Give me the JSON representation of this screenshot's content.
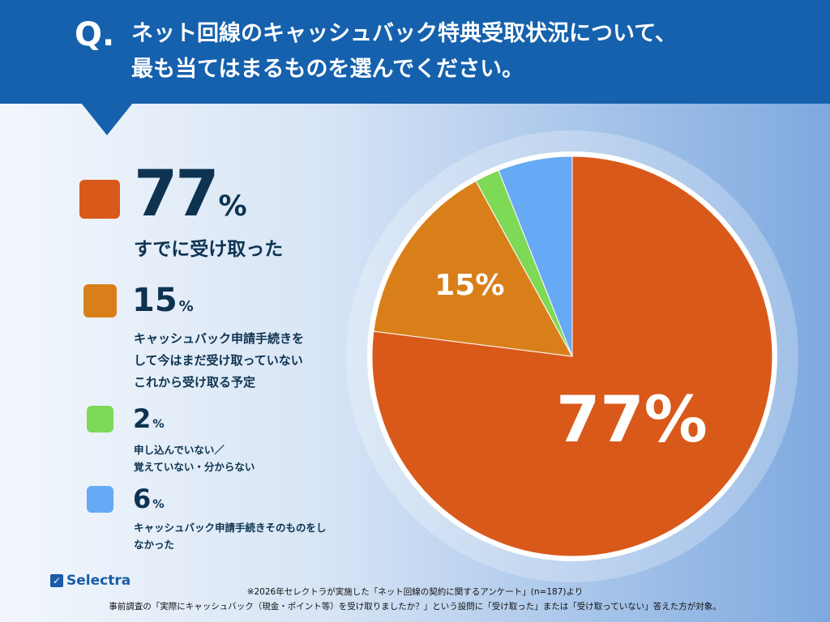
{
  "header": {
    "q_mark": "Q.",
    "title_line1": "ネット回線のキャッシュバック特典受取状況について、",
    "title_line2": "最も当てはまるものを選んでください。"
  },
  "chart_data": {
    "type": "pie",
    "start": "top",
    "direction": "clockwise",
    "slices": [
      {
        "label": "すでに受け取った",
        "value": 77,
        "pct_text": "77",
        "color": "#d9591a",
        "data_label": "77%"
      },
      {
        "label": "キャッシュバック申請手続きをして今はまだ受け取っていないこれから受け取る予定",
        "lines": [
          "キャッシュバック申請手続きを",
          "して今はまだ受け取っていない",
          "これから受け取る予定"
        ],
        "value": 15,
        "pct_text": "15",
        "color": "#d97f1a",
        "data_label": "15%"
      },
      {
        "label": "申し込んでいない／覚えていない・分からない",
        "lines": [
          "申し込んでいない／",
          "覚えていない・分からない"
        ],
        "value": 2,
        "pct_text": "2",
        "color": "#7ed957",
        "data_label": ""
      },
      {
        "label": "キャッシュバック申請手続きそのものをしなかった",
        "lines": [
          "キャッシュバック申請手続きそのものをし",
          "なかった"
        ],
        "value": 6,
        "pct_text": "6",
        "color": "#66a9f5",
        "data_label": ""
      }
    ],
    "percent_sign": "%"
  },
  "logo": "Selectra",
  "footer": {
    "line1": "※2026年セレクトラが実施した「ネット回線の契約に関するアンケート」(n=187)より",
    "line2": "事前調査の「実際にキャッシュバック（現金・ポイント等）を受け取りましたか？」という設問に「受け取った」または「受け取っていない」答えた方が対象。"
  }
}
